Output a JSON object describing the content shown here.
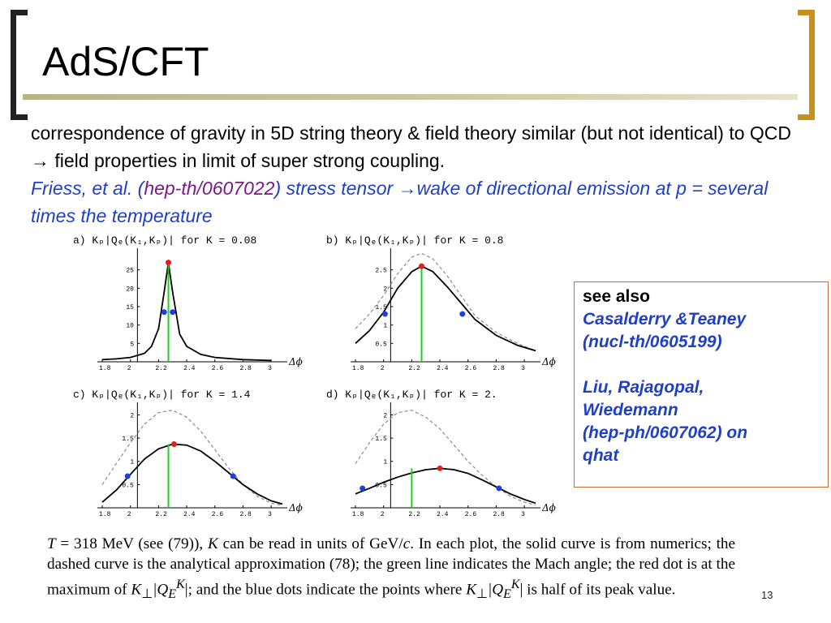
{
  "slide": {
    "title": "AdS/CFT",
    "line1": "correspondence of gravity in 5D string theory & field theory similar (but not identical) to QCD →  field properties in limit of super strong coupling.",
    "line2_a": "Friess, et al. (",
    "line2_link": "hep-th/0607022",
    "line2_b": ") stress tensor →wake of directional emission at p = several times the temperature",
    "page_number": "13"
  },
  "sidebox": {
    "heading": "see also",
    "ref1_line1": "Casalderry &Teaney",
    "ref1_line2": "(nucl-th/0605199)",
    "ref2_line1": "Liu, Rajagopal,",
    "ref2_line2": "Wiedemann",
    "ref2_line3": "(hep-ph/0607062) on",
    "ref2_line4": "qhat"
  },
  "caption": {
    "t1": "T",
    "t2": " = 318 MeV (see (79)), ",
    "t3": "K",
    "t4": " can be read in units of GeV/",
    "t5": "c",
    "t6": ". In each plot, the solid curve is from numerics; the dashed curve is the analytical approximation (78); the green line indicates the Mach angle; the red dot is at the maximum of ",
    "t7": "K",
    "t8": "⊥",
    "t9": "|Q",
    "t10": "E",
    "t11": "K",
    "t12": "|; and the blue dots indicate the points where ",
    "t13": "K",
    "t14": "⊥",
    "t15": "|Q",
    "t16": "E",
    "t17": "K",
    "t18": "| is half of its peak value."
  },
  "colors": {
    "title_bracket_left": "#222222",
    "title_bracket_right": "#c9901a",
    "link_blue": "#1f3fc4",
    "link_purple": "#7a1a86",
    "solid": "#000000",
    "dashed": "#8c8c8c",
    "mach": "#1fcf1f",
    "peak": "#e0201a",
    "half": "#1d3fe0"
  },
  "chart_data": [
    {
      "type": "line",
      "title": "a) Kₚ|Qₑ(K₁,Kₚ)|   for K = 0.08",
      "xlabel": "Δϕ",
      "x_ticks": [
        "1.8",
        "2",
        "2.2",
        "2.4",
        "2.6",
        "2.8",
        "3"
      ],
      "y_ticks": [
        "5",
        "10",
        "15",
        "20",
        "25"
      ],
      "xlim": [
        1.8,
        3.08
      ],
      "ylim": [
        0,
        30
      ],
      "solid": {
        "x": [
          1.8,
          1.9,
          2.0,
          2.1,
          2.15,
          2.2,
          2.24,
          2.27,
          2.3,
          2.35,
          2.4,
          2.5,
          2.6,
          2.8,
          3.0
        ],
        "y": [
          0.6,
          0.8,
          1.2,
          2.3,
          4.2,
          9.0,
          19.0,
          27.0,
          19.0,
          7.5,
          4.2,
          2.0,
          1.2,
          0.6,
          0.35
        ]
      },
      "dashed": {
        "x": [
          1.8,
          1.9,
          2.0,
          2.1,
          2.15,
          2.2,
          2.24,
          2.27,
          2.3,
          2.35,
          2.4,
          2.5,
          2.6,
          2.8,
          3.0
        ],
        "y": [
          0.6,
          0.8,
          1.2,
          2.3,
          4.2,
          9.0,
          19.0,
          27.0,
          19.0,
          7.5,
          4.2,
          2.0,
          1.2,
          0.6,
          0.35
        ]
      },
      "mach_angle": 2.27,
      "peak": [
        2.27,
        27.0
      ],
      "half_points": [
        [
          2.24,
          13.5
        ],
        [
          2.3,
          13.5
        ]
      ]
    },
    {
      "type": "line",
      "title": "b) Kₚ|Qₑ(K₁,Kₚ)|   for K = 0.8",
      "xlabel": "Δϕ",
      "x_ticks": [
        "1.8",
        "2",
        "2.2",
        "2.4",
        "2.6",
        "2.8",
        "3"
      ],
      "y_ticks": [
        "0.5",
        "1",
        "1.5",
        "2",
        "2.5"
      ],
      "xlim": [
        1.8,
        3.08
      ],
      "ylim": [
        0,
        3.0
      ],
      "solid": {
        "x": [
          1.8,
          1.9,
          2.0,
          2.1,
          2.2,
          2.27,
          2.35,
          2.45,
          2.55,
          2.65,
          2.8,
          2.95,
          3.08
        ],
        "y": [
          0.5,
          0.85,
          1.35,
          2.0,
          2.45,
          2.6,
          2.45,
          2.05,
          1.6,
          1.15,
          0.72,
          0.45,
          0.3
        ]
      },
      "dashed": {
        "x": [
          1.8,
          1.9,
          2.0,
          2.1,
          2.2,
          2.27,
          2.35,
          2.45,
          2.55,
          2.65,
          2.8,
          2.95,
          3.08
        ],
        "y": [
          0.9,
          1.3,
          1.8,
          2.4,
          2.85,
          2.95,
          2.8,
          2.35,
          1.8,
          1.25,
          0.8,
          0.5,
          0.3
        ]
      },
      "mach_angle": 2.27,
      "peak": [
        2.27,
        2.6
      ],
      "half_points": [
        [
          2.01,
          1.3
        ],
        [
          2.56,
          1.3
        ]
      ]
    },
    {
      "type": "line",
      "title": "c) Kₚ|Qₑ(K₁,Kₚ)|   for K = 1.4",
      "xlabel": "Δϕ",
      "x_ticks": [
        "1.8",
        "2",
        "2.2",
        "2.4",
        "2.6",
        "2.8",
        "3"
      ],
      "y_ticks": [
        "0.5",
        "1",
        "1.5",
        "2"
      ],
      "xlim": [
        1.8,
        3.08
      ],
      "ylim": [
        0,
        2.2
      ],
      "solid": {
        "x": [
          1.8,
          1.9,
          2.0,
          2.1,
          2.2,
          2.3,
          2.4,
          2.5,
          2.6,
          2.7,
          2.8,
          2.9,
          3.0,
          3.08
        ],
        "y": [
          0.12,
          0.38,
          0.72,
          1.05,
          1.27,
          1.37,
          1.35,
          1.22,
          1.0,
          0.75,
          0.5,
          0.3,
          0.15,
          0.08
        ]
      },
      "dashed": {
        "x": [
          1.8,
          1.9,
          2.0,
          2.1,
          2.2,
          2.3,
          2.4,
          2.5,
          2.6,
          2.7,
          2.8,
          2.9,
          3.0,
          3.08
        ],
        "y": [
          0.5,
          0.95,
          1.4,
          1.8,
          2.05,
          2.1,
          1.95,
          1.65,
          1.25,
          0.85,
          0.5,
          0.25,
          0.1,
          0.05
        ]
      },
      "mach_angle": 2.27,
      "peak": [
        2.31,
        1.37
      ],
      "half_points": [
        [
          1.98,
          0.68
        ],
        [
          2.73,
          0.68
        ]
      ]
    },
    {
      "type": "line",
      "title": "d) Kₚ|Qₑ(K₁,Kₚ)|   for K = 2.",
      "xlabel": "Δϕ",
      "x_ticks": [
        "1.8",
        "2",
        "2.2",
        "2.4",
        "2.6",
        "2.8",
        "3"
      ],
      "y_ticks": [
        "0.5",
        "1",
        "1.5",
        "2"
      ],
      "xlim": [
        1.8,
        3.08
      ],
      "ylim": [
        0,
        2.2
      ],
      "solid": {
        "x": [
          1.8,
          1.9,
          2.0,
          2.1,
          2.2,
          2.3,
          2.4,
          2.5,
          2.6,
          2.7,
          2.8,
          2.9,
          3.0,
          3.08
        ],
        "y": [
          0.3,
          0.42,
          0.55,
          0.66,
          0.75,
          0.82,
          0.85,
          0.82,
          0.74,
          0.6,
          0.45,
          0.3,
          0.18,
          0.1
        ]
      },
      "dashed": {
        "x": [
          1.8,
          1.9,
          2.0,
          2.1,
          2.2,
          2.3,
          2.4,
          2.5,
          2.6,
          2.7,
          2.8,
          2.9,
          3.0,
          3.08
        ],
        "y": [
          0.95,
          1.4,
          1.8,
          2.05,
          2.1,
          1.95,
          1.7,
          1.35,
          1.0,
          0.7,
          0.45,
          0.25,
          0.12,
          0.06
        ]
      },
      "mach_angle": 2.2,
      "peak": [
        2.4,
        0.85
      ],
      "half_points": [
        [
          1.85,
          0.42
        ],
        [
          2.82,
          0.42
        ]
      ]
    }
  ]
}
